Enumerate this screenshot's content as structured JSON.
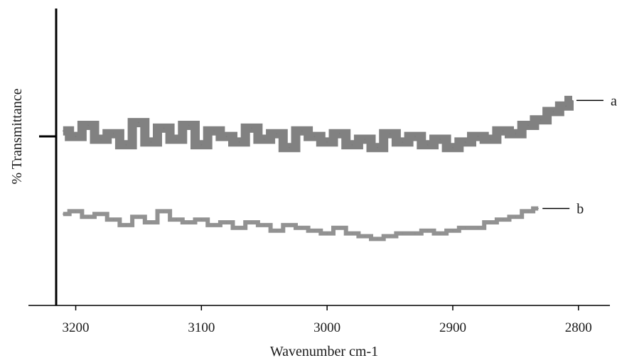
{
  "chart_data": {
    "type": "line",
    "title": "",
    "xlabel": "Wavenumber  cm-1",
    "ylabel": "%  Transmittance",
    "xlim": [
      3215,
      2775
    ],
    "x_reversed": true,
    "ylim": [
      0,
      100
    ],
    "x_ticks": [
      3200,
      3100,
      3000,
      2900,
      2800
    ],
    "grid": false,
    "legend": "none",
    "series": [
      {
        "name": "a",
        "color": "#7a7a7a",
        "x": [
          3210,
          3200,
          3190,
          3180,
          3170,
          3160,
          3150,
          3140,
          3130,
          3120,
          3110,
          3100,
          3090,
          3080,
          3070,
          3060,
          3050,
          3040,
          3030,
          3020,
          3010,
          3000,
          2990,
          2980,
          2970,
          2960,
          2950,
          2940,
          2930,
          2920,
          2910,
          2900,
          2890,
          2880,
          2870,
          2860,
          2850,
          2840,
          2830,
          2820,
          2810,
          2805
        ],
        "values": [
          63,
          61,
          65,
          60,
          62,
          58,
          66,
          59,
          64,
          60,
          65,
          58,
          63,
          61,
          59,
          64,
          60,
          62,
          57,
          63,
          61,
          59,
          62,
          58,
          60,
          57,
          62,
          59,
          61,
          58,
          60,
          57,
          59,
          61,
          60,
          63,
          62,
          65,
          67,
          70,
          72,
          74
        ]
      },
      {
        "name": "b",
        "color": "#8c8c8c",
        "x": [
          3210,
          3200,
          3190,
          3180,
          3170,
          3160,
          3150,
          3140,
          3130,
          3120,
          3110,
          3100,
          3090,
          3080,
          3070,
          3060,
          3050,
          3040,
          3030,
          3020,
          3010,
          3000,
          2990,
          2980,
          2970,
          2960,
          2950,
          2940,
          2930,
          2920,
          2910,
          2900,
          2890,
          2880,
          2870,
          2860,
          2850,
          2840,
          2832
        ],
        "values": [
          33,
          34,
          32,
          33,
          31,
          29,
          32,
          30,
          34,
          31,
          30,
          31,
          29,
          30,
          28,
          30,
          29,
          27,
          29,
          28,
          27,
          26,
          28,
          26,
          25,
          24,
          25,
          26,
          26,
          27,
          26,
          27,
          28,
          28,
          30,
          31,
          32,
          34,
          35
        ]
      }
    ]
  }
}
